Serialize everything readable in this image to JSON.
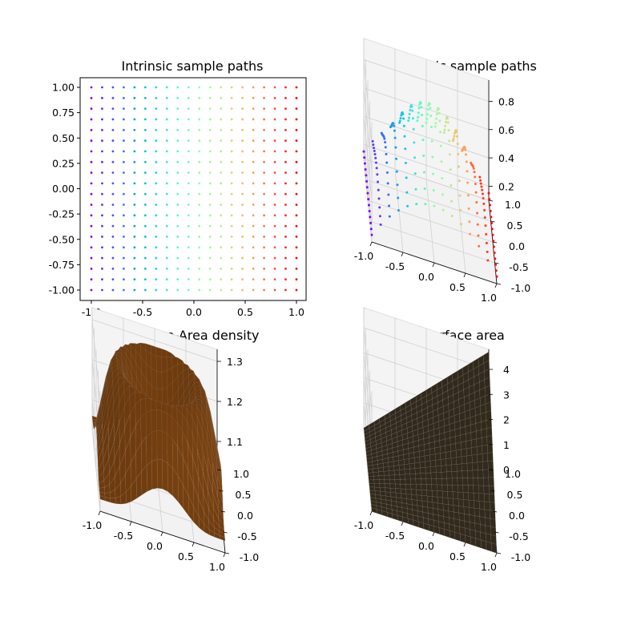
{
  "chart_data": [
    {
      "type": "scatter",
      "title": "Intrinsic sample paths",
      "xlabel": "",
      "ylabel": "",
      "xlim": [
        -1.0,
        1.0
      ],
      "ylim": [
        -1.0,
        1.0
      ],
      "grid_n": 20,
      "x_ticks": [
        "-1.0",
        "-0.5",
        "0.0",
        "0.5",
        "1.0"
      ],
      "y_ticks": [
        "-1.00",
        "-0.75",
        "-0.50",
        "-0.25",
        "0.00",
        "0.25",
        "0.50",
        "0.75",
        "1.00"
      ],
      "colormap": "rainbow"
    },
    {
      "type": "scatter3d",
      "title": "Extrinsic sample paths",
      "xlim": [
        -1.0,
        1.0
      ],
      "ylim": [
        -1.0,
        1.0
      ],
      "zlim": [
        0.1,
        0.95
      ],
      "x_ticks": [
        "-1.0",
        "-0.5",
        "0.0",
        "0.5",
        "1.0"
      ],
      "y_ticks": [
        "-1.0",
        "-0.5",
        "0.0",
        "0.5",
        "1.0"
      ],
      "z_ticks": [
        "0.2",
        "0.4",
        "0.6",
        "0.8"
      ],
      "colormap": "rainbow"
    },
    {
      "type": "surface",
      "title": "Surface-Area density",
      "xlim": [
        -1.0,
        1.0
      ],
      "ylim": [
        -1.0,
        1.0
      ],
      "zlim": [
        1.03,
        1.33
      ],
      "x_ticks": [
        "-1.0",
        "-0.5",
        "0.0",
        "0.5",
        "1.0"
      ],
      "y_ticks": [
        "-1.0",
        "-0.5",
        "0.0",
        "0.5",
        "1.0"
      ],
      "z_ticks": [
        "1.1",
        "1.2",
        "1.3"
      ],
      "color": "#8a4a12"
    },
    {
      "type": "surface",
      "title": "Surface area",
      "xlim": [
        -1.0,
        1.0
      ],
      "ylim": [
        -1.0,
        1.0
      ],
      "zlim": [
        0,
        4.8
      ],
      "x_ticks": [
        "-1.0",
        "-0.5",
        "0.0",
        "0.5",
        "1.0"
      ],
      "y_ticks": [
        "-1.0",
        "-0.5",
        "0.0",
        "0.5",
        "1.0"
      ],
      "z_ticks": [
        "0",
        "1",
        "2",
        "3",
        "4"
      ],
      "color": "#3e3423"
    }
  ]
}
